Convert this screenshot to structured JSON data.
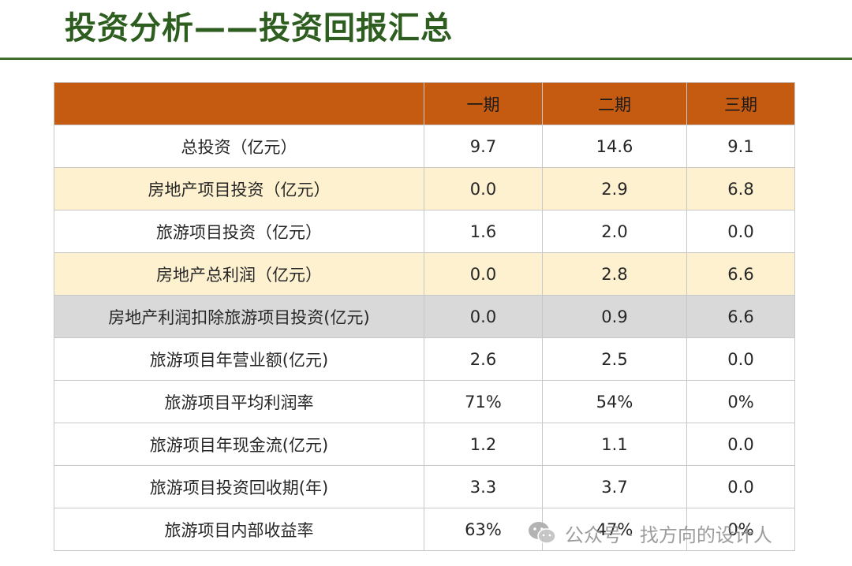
{
  "title": "投资分析——投资回报汇总",
  "table": {
    "headers": [
      "",
      "一期",
      "二期",
      "三期"
    ],
    "rows": [
      {
        "label": "总投资（亿元）",
        "values": [
          "9.7",
          "14.6",
          "9.1"
        ]
      },
      {
        "label": "房地产项目投资（亿元）",
        "values": [
          "0.0",
          "2.9",
          "6.8"
        ]
      },
      {
        "label": "旅游项目投资（亿元）",
        "values": [
          "1.6",
          "2.0",
          "0.0"
        ]
      },
      {
        "label": "房地产总利润（亿元）",
        "values": [
          "0.0",
          "2.8",
          "6.6"
        ]
      },
      {
        "label": "房地产利润扣除旅游项目投资(亿元)",
        "values": [
          "0.0",
          "0.9",
          "6.6"
        ]
      },
      {
        "label": "旅游项目年营业额(亿元)",
        "values": [
          "2.6",
          "2.5",
          "0.0"
        ]
      },
      {
        "label": "旅游项目平均利润率",
        "values": [
          "71%",
          "54%",
          "0%"
        ]
      },
      {
        "label": "旅游项目年现金流(亿元)",
        "values": [
          "1.2",
          "1.1",
          "0.0"
        ]
      },
      {
        "label": "旅游项目投资回收期(年)",
        "values": [
          "3.3",
          "3.7",
          "0.0"
        ]
      },
      {
        "label": "旅游项目内部收益率",
        "values": [
          "63%",
          "47%",
          "0%"
        ]
      }
    ]
  },
  "watermark": {
    "text": "公众号 · 找方向的设计人",
    "icon": "wechat-icon"
  },
  "colors": {
    "title": "#2e5e1f",
    "rule": "#3f6f2e",
    "header_bg": "#c55a11",
    "highlight_beige": "#fdf1d0",
    "highlight_gray": "#d9d9d9"
  }
}
